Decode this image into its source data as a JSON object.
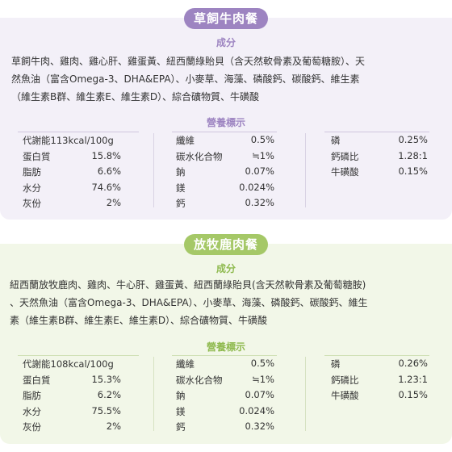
{
  "products": [
    {
      "title": "草飼牛肉餐",
      "ingredients_heading": "成分",
      "ingredients_lines": [
        "草飼牛肉、雞肉、雞心肝、雞蛋黃、紐西蘭綠貽貝（含天然軟骨素及葡萄糖胺）、天",
        "然魚油（富含Omega-3、DHA&EPA）、小麥草、海藻、磷酸鈣、碳酸鈣、維生素",
        "（維生素B群、維生素E、維生素D）、綜合礦物質、牛磺酸"
      ],
      "nutrition_heading": "營養標示",
      "col1": [
        {
          "label": "代謝能113kcal/100g",
          "value": ""
        },
        {
          "label": "蛋白質",
          "value": "15.8%"
        },
        {
          "label": "脂肪",
          "value": "6.6%"
        },
        {
          "label": "水分",
          "value": "74.6%"
        },
        {
          "label": "灰份",
          "value": "2%"
        }
      ],
      "col2": [
        {
          "label": "纖維",
          "value": "0.5%"
        },
        {
          "label": "碳水化合物",
          "value": "≒1%"
        },
        {
          "label": "鈉",
          "value": "0.07%"
        },
        {
          "label": "鎂",
          "value": "0.024%"
        },
        {
          "label": "鈣",
          "value": "0.32%"
        }
      ],
      "col3": [
        {
          "label": "磷",
          "value": "0.25%"
        },
        {
          "label": "鈣磷比",
          "value": "1.28:1"
        },
        {
          "label": "牛磺酸",
          "value": "0.15%"
        }
      ]
    },
    {
      "title": "放牧鹿肉餐",
      "ingredients_heading": "成分",
      "ingredients_lines": [
        "紐西蘭放牧鹿肉、雞肉、牛心肝、雞蛋黃、紐西蘭綠貽貝(含天然軟骨素及葡萄糖胺)",
        "、天然魚油（富含Omega-3、DHA&EPA）、小麥草、海藻、磷酸鈣、碳酸鈣、維生",
        "素（維生素B群、維生素E、維生素D）、綜合礦物質、牛磺酸"
      ],
      "nutrition_heading": "營養標示",
      "col1": [
        {
          "label": "代謝能108kcal/100g",
          "value": ""
        },
        {
          "label": "蛋白質",
          "value": "15.3%"
        },
        {
          "label": "脂肪",
          "value": "6.2%"
        },
        {
          "label": "水分",
          "value": "75.5%"
        },
        {
          "label": "灰份",
          "value": "2%"
        }
      ],
      "col2": [
        {
          "label": "纖維",
          "value": "0.5%"
        },
        {
          "label": "碳水化合物",
          "value": "≒1%"
        },
        {
          "label": "鈉",
          "value": "0.07%"
        },
        {
          "label": "鎂",
          "value": "0.024%"
        },
        {
          "label": "鈣",
          "value": "0.32%"
        }
      ],
      "col3": [
        {
          "label": "磷",
          "value": "0.26%"
        },
        {
          "label": "鈣磷比",
          "value": "1.23:1"
        },
        {
          "label": "牛磺酸",
          "value": "0.15%"
        }
      ]
    }
  ],
  "colors": {
    "purple_accent": "#9d84c1",
    "purple_bg": "#f3f0f8",
    "green_accent": "#a5c867",
    "green_bg": "#f2f7e8",
    "text": "#333333"
  }
}
